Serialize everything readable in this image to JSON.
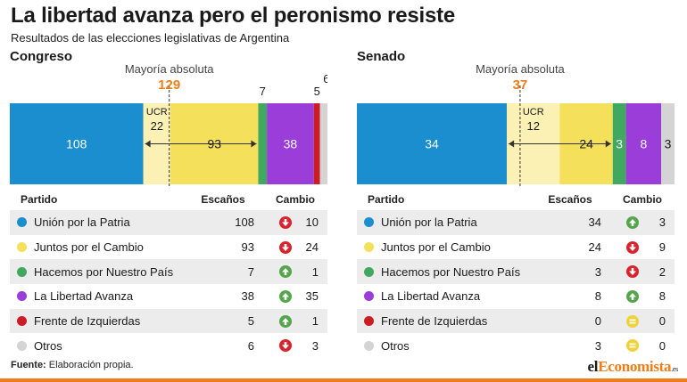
{
  "header": {
    "title": "La libertad avanza pero el peronismo resiste",
    "subtitle": "Resultados de las elecciones legislativas de Argentina"
  },
  "footer": {
    "source_label": "Fuente:",
    "source_text": "Elaboración propia."
  },
  "logo": {
    "part1": "el",
    "part2": "Economista",
    "part3": ".es"
  },
  "table_headers": {
    "party": "Partido",
    "seats": "Escaños",
    "change": "Cambio"
  },
  "colors": {
    "union": "#1a8ece",
    "juntos": "#f5e05c",
    "ucr": "#fbf1b4",
    "hacemos": "#41a85f",
    "libertad": "#9b3dd9",
    "izquierda": "#cc1c24",
    "otros": "#d4d4d4",
    "up": "#55a64a",
    "down": "#d9232d",
    "equal": "#efd23a",
    "accent": "#f07d19"
  },
  "chart_data": [
    {
      "type": "bar",
      "chamber": "Congreso",
      "majority_label": "Mayoría absoluta",
      "majority": 129,
      "total": 257,
      "ucr_label": "UCR",
      "ucr_seats": 22,
      "segments": [
        {
          "party": "Unión por la Patria",
          "key": "union",
          "value": 108,
          "label_pos": "inside"
        },
        {
          "party": "Juntos por el Cambio",
          "key": "juntos",
          "value": 93,
          "label_pos": "inside"
        },
        {
          "party": "Hacemos por Nuestro País",
          "key": "hacemos",
          "value": 7,
          "label_pos": "above"
        },
        {
          "party": "La Libertad Avanza",
          "key": "libertad",
          "value": 38,
          "label_pos": "inside"
        },
        {
          "party": "Frente de Izquierdas",
          "key": "izquierda",
          "value": 5,
          "label_pos": "above"
        },
        {
          "party": "Otros",
          "key": "otros",
          "value": 6,
          "label_pos": "above-high"
        }
      ],
      "rows": [
        {
          "party": "Unión por la Patria",
          "key": "union",
          "seats": 108,
          "direction": "down",
          "change": 10
        },
        {
          "party": "Juntos por el Cambio",
          "key": "juntos",
          "seats": 93,
          "direction": "down",
          "change": 24
        },
        {
          "party": "Hacemos por Nuestro País",
          "key": "hacemos",
          "seats": 7,
          "direction": "up",
          "change": 1
        },
        {
          "party": "La Libertad Avanza",
          "key": "libertad",
          "seats": 38,
          "direction": "up",
          "change": 35
        },
        {
          "party": "Frente de Izquierdas",
          "key": "izquierda",
          "seats": 5,
          "direction": "up",
          "change": 1
        },
        {
          "party": "Otros",
          "key": "otros",
          "seats": 6,
          "direction": "down",
          "change": 3
        }
      ]
    },
    {
      "type": "bar",
      "chamber": "Senado",
      "majority_label": "Mayoría absoluta",
      "majority": 37,
      "total": 72,
      "ucr_label": "UCR",
      "ucr_seats": 12,
      "segments": [
        {
          "party": "Unión por la Patria",
          "key": "union",
          "value": 34,
          "label_pos": "inside"
        },
        {
          "party": "Juntos por el Cambio",
          "key": "juntos",
          "value": 24,
          "label_pos": "inside"
        },
        {
          "party": "Hacemos por Nuestro País",
          "key": "hacemos",
          "value": 3,
          "label_pos": "inside"
        },
        {
          "party": "La Libertad Avanza",
          "key": "libertad",
          "value": 8,
          "label_pos": "inside"
        },
        {
          "party": "Otros",
          "key": "otros",
          "value": 3,
          "label_pos": "inside"
        }
      ],
      "rows": [
        {
          "party": "Unión por la Patria",
          "key": "union",
          "seats": 34,
          "direction": "up",
          "change": 3
        },
        {
          "party": "Juntos por el Cambio",
          "key": "juntos",
          "seats": 24,
          "direction": "down",
          "change": 9
        },
        {
          "party": "Hacemos por Nuestro País",
          "key": "hacemos",
          "seats": 3,
          "direction": "down",
          "change": 2
        },
        {
          "party": "La Libertad Avanza",
          "key": "libertad",
          "seats": 8,
          "direction": "up",
          "change": 8
        },
        {
          "party": "Frente de Izquierdas",
          "key": "izquierda",
          "seats": 0,
          "direction": "equal",
          "change": 0
        },
        {
          "party": "Otros",
          "key": "otros",
          "seats": 3,
          "direction": "equal",
          "change": 0
        }
      ]
    }
  ]
}
